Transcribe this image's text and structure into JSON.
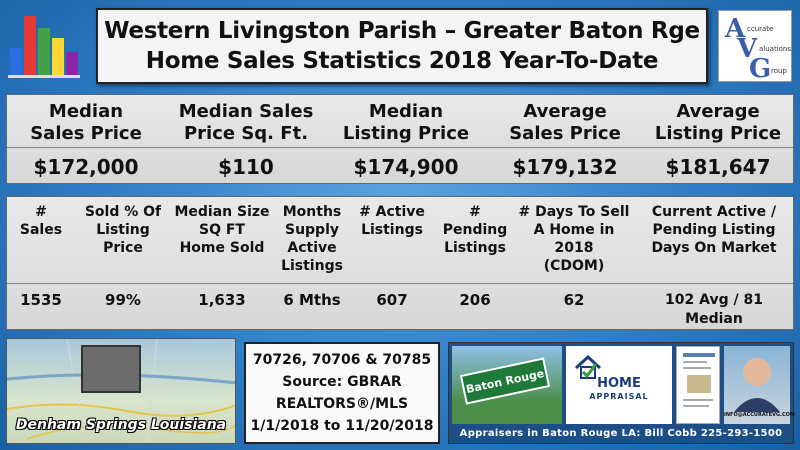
{
  "header": {
    "title_line1": "Western Livingston Parish – Greater Baton Rge",
    "title_line2": "Home Sales Statistics 2018 Year-To-Date",
    "logo_bar_colors": [
      "#2b6de0",
      "#e53935",
      "#43a047",
      "#fdd835",
      "#8e24aa"
    ],
    "brand_logo_text": "Accurate Valuations Group"
  },
  "summary": [
    {
      "label_line1": "Median",
      "label_line2": "Sales Price",
      "value": "$172,000"
    },
    {
      "label_line1": "Median Sales",
      "label_line2": "Price Sq. Ft.",
      "value": "$110"
    },
    {
      "label_line1": "Median",
      "label_line2": "Listing Price",
      "value": "$174,900"
    },
    {
      "label_line1": "Average",
      "label_line2": "Sales Price",
      "value": "$179,132"
    },
    {
      "label_line1": "Average",
      "label_line2": "Listing Price",
      "value": "$181,647"
    }
  ],
  "stats": [
    {
      "label": [
        "#",
        "Sales"
      ],
      "value": [
        "1535"
      ]
    },
    {
      "label": [
        "Sold % Of",
        "Listing",
        "Price"
      ],
      "value": [
        "99%"
      ]
    },
    {
      "label": [
        "Median Size",
        "SQ FT",
        "Home Sold"
      ],
      "value": [
        "1,633"
      ]
    },
    {
      "label": [
        "Months",
        "Supply",
        "Active",
        "Listings"
      ],
      "value": [
        "6 Mths"
      ]
    },
    {
      "label": [
        "# Active",
        "Listings"
      ],
      "value": [
        "607"
      ]
    },
    {
      "label": [
        "#",
        "Pending",
        "Listings"
      ],
      "value": [
        "206"
      ]
    },
    {
      "label": [
        "# Days To Sell",
        "A Home in",
        "2018",
        "(CDOM)"
      ],
      "value": [
        "62"
      ]
    },
    {
      "label": [
        "Current Active /",
        "Pending Listing",
        "Days On Market"
      ],
      "value": [
        "102 Avg / 81",
        "Median"
      ]
    }
  ],
  "map": {
    "caption": "Denham Springs Louisiana"
  },
  "source": {
    "line1": "70726, 70706 & 70785",
    "line2": "Source: GBRAR",
    "line3": "REALTORS®/MLS",
    "line4": "1/1/2018 to 11/20/2018"
  },
  "photos": {
    "baton_rouge_sign": "Baton Rouge",
    "home_appraisal_title": "HOME",
    "home_appraisal_sub": "APPRAISAL",
    "email": "INFO@ACCURATEVG.COM",
    "footer": "Appraisers in Baton Rouge LA: Bill Cobb 225-293-1500"
  }
}
